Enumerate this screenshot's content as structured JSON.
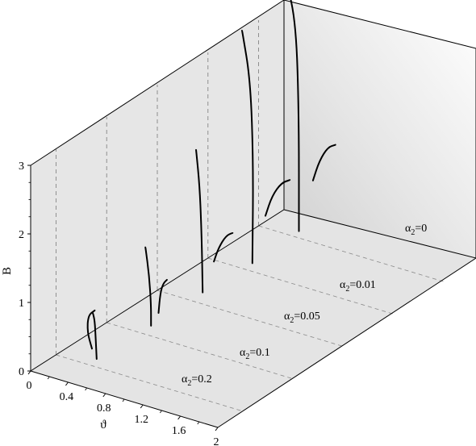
{
  "chart_data": {
    "type": "line",
    "title": "",
    "ylabel": "B",
    "xlabel": "ϑ",
    "zlabel": "",
    "ylim": [
      0,
      3
    ],
    "xlim": [
      0,
      2
    ],
    "y_ticks": [
      "0",
      "1",
      "2",
      "3"
    ],
    "x_ticks": [
      "0",
      "0.4",
      "0.8",
      "1.2",
      "1.6",
      "2"
    ],
    "series": [
      {
        "name": "α₂=0.2",
        "label_base": "α",
        "label_sub": "2",
        "label_tail": "=0.2",
        "curves": [
          [
            [
              0.33,
              0.18
            ],
            [
              0.28,
              0.4
            ],
            [
              0.29,
              0.65
            ],
            [
              0.36,
              0.75
            ]
          ],
          [
            [
              0.38,
              0.05
            ],
            [
              0.37,
              0.35
            ],
            [
              0.36,
              0.6
            ],
            [
              0.34,
              0.7
            ]
          ]
        ]
      },
      {
        "name": "α₂=0.1",
        "label_base": "α",
        "label_sub": "2",
        "label_tail": "=0.1",
        "curves": [
          [
            [
              0.42,
              0.08
            ],
            [
              0.42,
              0.4
            ],
            [
              0.4,
              0.8
            ],
            [
              0.36,
              1.2
            ]
          ],
          [
            [
              0.5,
              0.3
            ],
            [
              0.52,
              0.6
            ],
            [
              0.55,
              0.75
            ],
            [
              0.59,
              0.82
            ]
          ]
        ]
      },
      {
        "name": "α₂=0.05",
        "label_base": "α",
        "label_sub": "2",
        "label_tail": "=0.05",
        "curves": [
          [
            [
              0.43,
              0.1
            ],
            [
              0.42,
              0.9
            ],
            [
              0.4,
              1.6
            ],
            [
              0.36,
              2.15
            ]
          ],
          [
            [
              0.55,
              0.6
            ],
            [
              0.6,
              0.82
            ],
            [
              0.68,
              1.03
            ],
            [
              0.75,
              1.1
            ]
          ]
        ]
      },
      {
        "name": "α₂=0.01",
        "label_base": "α",
        "label_sub": "2",
        "label_tail": "=0.01",
        "curves": [
          [
            [
              0.42,
              0.05
            ],
            [
              0.43,
              1.5
            ],
            [
              0.4,
              2.7
            ],
            [
              0.31,
              3.4
            ]
          ],
          [
            [
              0.56,
              0.8
            ],
            [
              0.63,
              1.12
            ],
            [
              0.73,
              1.35
            ],
            [
              0.82,
              1.43
            ]
          ]
        ]
      },
      {
        "name": "α₂=0",
        "label_base": "α",
        "label_sub": "2",
        "label_tail": "=0",
        "curves": [
          [
            [
              0.43,
              0.1
            ],
            [
              0.43,
              1.8
            ],
            [
              0.4,
              3.1
            ],
            [
              0.3,
              3.7
            ]
          ],
          [
            [
              0.58,
              0.9
            ],
            [
              0.65,
              1.22
            ],
            [
              0.74,
              1.45
            ],
            [
              0.82,
              1.52
            ]
          ]
        ]
      }
    ]
  }
}
